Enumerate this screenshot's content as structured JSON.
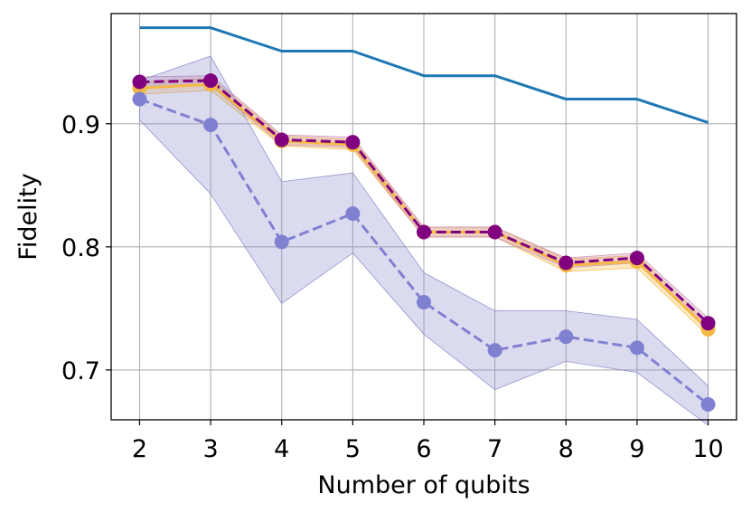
{
  "chart_data": {
    "type": "line",
    "xlabel": "Number of qubits",
    "ylabel": "Fidelity",
    "x": [
      2,
      3,
      4,
      5,
      6,
      7,
      8,
      9,
      10
    ],
    "xlim": [
      1.6,
      10.4
    ],
    "ylim": [
      0.6595,
      0.9895
    ],
    "xticks": [
      "2",
      "3",
      "4",
      "5",
      "6",
      "7",
      "8",
      "9",
      "10"
    ],
    "yticks": [
      {
        "value": 0.7,
        "label": "0.7"
      },
      {
        "value": 0.8,
        "label": "0.8"
      },
      {
        "value": 0.9,
        "label": "0.9"
      }
    ],
    "grid": true,
    "series": [
      {
        "color": "#1f77b4",
        "style": "solid",
        "markers": false,
        "values": [
          0.978,
          0.978,
          0.959,
          0.959,
          0.939,
          0.939,
          0.92,
          0.92,
          0.901
        ]
      },
      {
        "color": "#f5b945",
        "style": "solid",
        "markers": true,
        "values": [
          0.929,
          0.932,
          0.886,
          0.883,
          0.812,
          0.812,
          0.785,
          0.788,
          0.733
        ],
        "band_low": [
          0.924,
          0.927,
          0.882,
          0.879,
          0.808,
          0.808,
          0.78,
          0.783,
          0.728
        ],
        "band_high": [
          0.934,
          0.937,
          0.89,
          0.887,
          0.816,
          0.816,
          0.79,
          0.793,
          0.738
        ],
        "band_color": "#f5b945"
      },
      {
        "color": "#800080",
        "style": "dashed",
        "markers": true,
        "values": [
          0.934,
          0.935,
          0.887,
          0.885,
          0.812,
          0.812,
          0.787,
          0.791,
          0.738
        ],
        "band_low": [
          0.93,
          0.931,
          0.883,
          0.881,
          0.808,
          0.808,
          0.783,
          0.787,
          0.734
        ],
        "band_high": [
          0.938,
          0.939,
          0.891,
          0.889,
          0.816,
          0.816,
          0.791,
          0.795,
          0.742
        ],
        "band_color": "#c98bb0"
      },
      {
        "color": "#8080d0",
        "style": "dashed",
        "markers": true,
        "values": [
          0.92,
          0.899,
          0.804,
          0.827,
          0.755,
          0.716,
          0.727,
          0.718,
          0.672
        ],
        "band_low": [
          0.903,
          0.843,
          0.754,
          0.795,
          0.729,
          0.684,
          0.707,
          0.698,
          0.655
        ],
        "band_high": [
          0.935,
          0.955,
          0.853,
          0.86,
          0.779,
          0.748,
          0.748,
          0.741,
          0.687
        ],
        "band_color": "#8888cc"
      }
    ]
  }
}
